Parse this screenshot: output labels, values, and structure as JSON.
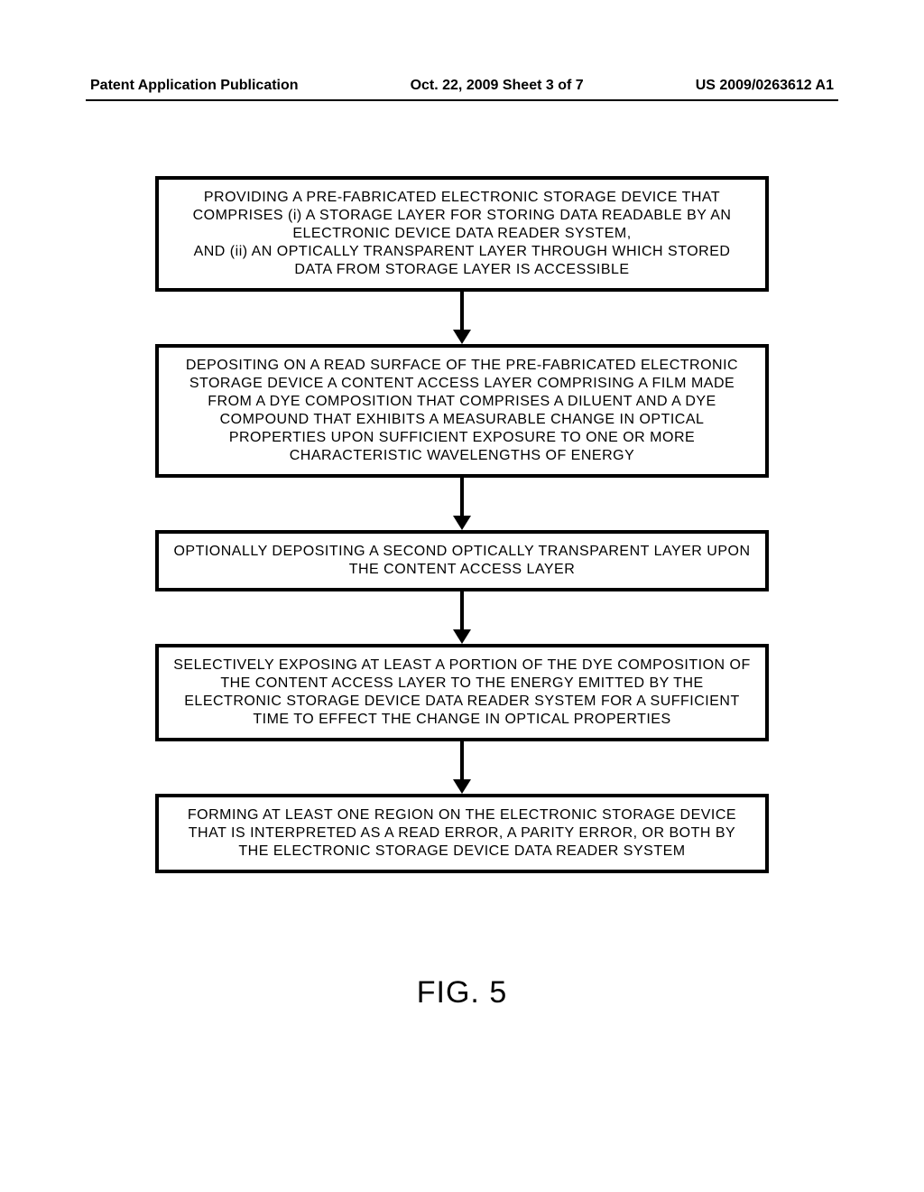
{
  "header": {
    "left": "Patent Application Publication",
    "center": "Oct. 22, 2009  Sheet 3 of 7",
    "right": "US 2009/0263612 A1",
    "fontsize": 16,
    "rule_color": "#000000"
  },
  "flowchart": {
    "type": "flowchart",
    "background_color": "#ffffff",
    "box_border_color": "#000000",
    "box_border_width": 4,
    "text_color": "#000000",
    "fontsize": 16,
    "arrow_color": "#000000",
    "arrow_line_width": 4,
    "arrow_head_size": 16,
    "steps": [
      {
        "id": "step1",
        "text": "PROVIDING A PRE-FABRICATED ELECTRONIC STORAGE DEVICE THAT COMPRISES (i) A STORAGE LAYER FOR STORING DATA READABLE BY AN ELECTRONIC DEVICE DATA READER SYSTEM,\nAND (ii) AN OPTICALLY TRANSPARENT LAYER THROUGH WHICH STORED DATA FROM STORAGE LAYER IS ACCESSIBLE"
      },
      {
        "id": "step2",
        "text": "DEPOSITING ON A READ SURFACE OF THE PRE-FABRICATED ELECTRONIC STORAGE DEVICE A CONTENT ACCESS LAYER COMPRISING A FILM MADE FROM A DYE COMPOSITION THAT COMPRISES A DILUENT AND A DYE COMPOUND THAT EXHIBITS A MEASURABLE CHANGE IN OPTICAL PROPERTIES UPON SUFFICIENT EXPOSURE TO ONE OR MORE CHARACTERISTIC WAVELENGTHS OF ENERGY"
      },
      {
        "id": "step3",
        "text": "OPTIONALLY DEPOSITING A SECOND OPTICALLY TRANSPARENT LAYER UPON THE CONTENT ACCESS LAYER"
      },
      {
        "id": "step4",
        "text": "SELECTIVELY EXPOSING AT LEAST A PORTION OF THE DYE COMPOSITION OF THE CONTENT ACCESS LAYER TO THE ENERGY EMITTED BY THE ELECTRONIC STORAGE DEVICE DATA READER SYSTEM FOR A SUFFICIENT TIME TO EFFECT THE CHANGE IN OPTICAL PROPERTIES"
      },
      {
        "id": "step5",
        "text": "FORMING AT LEAST ONE REGION ON THE ELECTRONIC STORAGE DEVICE THAT IS INTERPRETED AS A READ ERROR, A PARITY ERROR, OR BOTH BY THE ELECTRONIC STORAGE DEVICE DATA READER SYSTEM"
      }
    ]
  },
  "figure_label": "FIG. 5",
  "figure_label_fontsize": 34
}
